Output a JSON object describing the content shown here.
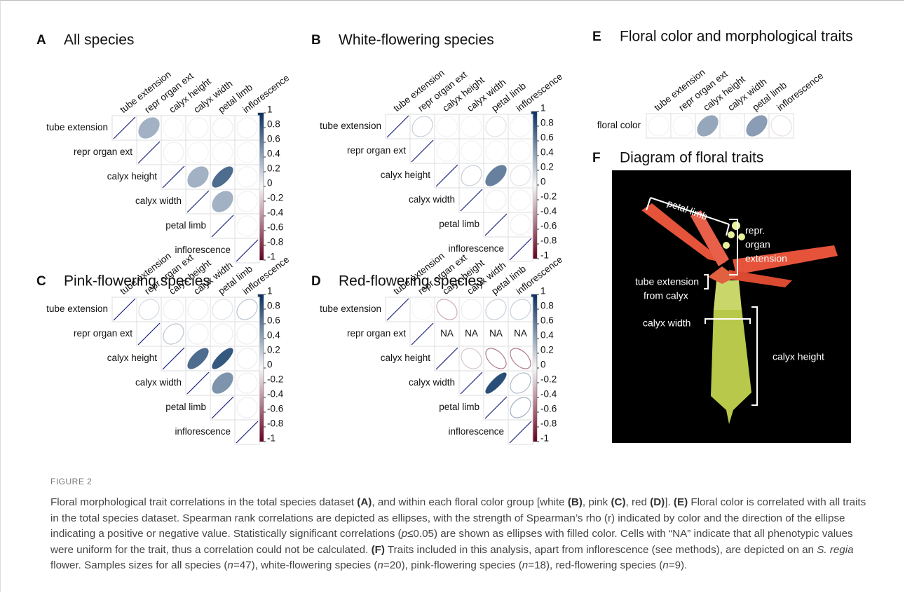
{
  "traits": [
    "tube extension",
    "repr organ ext",
    "calyx height",
    "calyx width",
    "petal limb",
    "inflorescence"
  ],
  "colorbar_ticks": [
    1,
    0.8,
    0.6,
    0.4,
    0.2,
    0,
    -0.2,
    -0.4,
    -0.6,
    -0.8,
    -1
  ],
  "colors": {
    "negative": "#67001f",
    "zero": "#f7f7f7",
    "positive": "#053061",
    "diagonal": "#1a237e"
  },
  "panels": [
    {
      "letter": "A",
      "title": "All species",
      "rows": [
        [
          1,
          0.35,
          0.02,
          0.03,
          0.05,
          0.04
        ],
        [
          1,
          0.05,
          0.02,
          0.02,
          0.02
        ],
        [
          1,
          0.35,
          0.7,
          0.03
        ],
        [
          1,
          0.35,
          0.03
        ],
        [
          1,
          0.02
        ],
        [
          1
        ]
      ],
      "significant": [
        [
          false,
          true,
          false,
          false,
          false,
          false
        ],
        [
          false,
          false,
          false,
          false,
          false
        ],
        [
          false,
          true,
          true,
          false
        ],
        [
          false,
          true,
          false
        ],
        [
          false,
          false
        ],
        [
          false
        ]
      ]
    },
    {
      "letter": "B",
      "title": "White-flowering species",
      "rows": [
        [
          1,
          0.2,
          0.02,
          0.02,
          0.1,
          0.02
        ],
        [
          1,
          0.02,
          0.02,
          0.02,
          0.02
        ],
        [
          1,
          0.2,
          0.6,
          0.1
        ],
        [
          1,
          0.05,
          0.03
        ],
        [
          1,
          0.05
        ],
        [
          1
        ]
      ],
      "significant": [
        [
          false,
          false,
          false,
          false,
          false,
          false
        ],
        [
          false,
          false,
          false,
          false,
          false
        ],
        [
          false,
          false,
          true,
          false
        ],
        [
          false,
          false,
          false
        ],
        [
          false,
          false
        ],
        [
          false
        ]
      ]
    },
    {
      "letter": "C",
      "title": "Pink-flowering species",
      "rows": [
        [
          1,
          0.15,
          0.05,
          0.05,
          0.1,
          0.25
        ],
        [
          1,
          0.25,
          0.05,
          0.05,
          0.05
        ],
        [
          1,
          0.7,
          0.8,
          0.05
        ],
        [
          1,
          0.5,
          0.05
        ],
        [
          1,
          0.05
        ],
        [
          1
        ]
      ],
      "significant": [
        [
          false,
          false,
          false,
          false,
          false,
          false
        ],
        [
          false,
          false,
          false,
          false,
          false
        ],
        [
          false,
          true,
          true,
          false
        ],
        [
          false,
          true,
          false
        ],
        [
          false,
          false
        ],
        [
          false
        ]
      ]
    },
    {
      "letter": "D",
      "title": "Red-flowering species",
      "na_label": "NA",
      "rows": [
        [
          1,
          0.0,
          -0.3,
          0.05,
          0.2,
          0.2
        ],
        [
          1,
          null,
          null,
          null,
          null
        ],
        [
          1,
          -0.2,
          -0.5,
          -0.5
        ],
        [
          1,
          0.85,
          0.3
        ],
        [
          1,
          0.35
        ],
        [
          1
        ]
      ],
      "significant": [
        [
          false,
          false,
          false,
          false,
          false,
          false
        ],
        [
          false,
          false,
          false,
          false,
          false
        ],
        [
          false,
          false,
          false,
          false
        ],
        [
          false,
          true,
          false
        ],
        [
          false,
          false
        ],
        [
          false
        ]
      ]
    }
  ],
  "color_panel": {
    "letter": "E",
    "title": "Floral color and morphological traits",
    "row_label": "floral color",
    "values": [
      0.02,
      0.02,
      0.4,
      0.0,
      0.45,
      -0.1
    ],
    "significant": [
      false,
      false,
      true,
      false,
      true,
      false
    ]
  },
  "diagram": {
    "letter": "F",
    "title": "Diagram of floral traits",
    "labels": [
      [
        "petal limb"
      ],
      [
        "repr.",
        "organ",
        "extension"
      ],
      [
        "tube extension",
        "from calyx"
      ],
      [
        "calyx width"
      ],
      [
        "calyx height"
      ]
    ]
  },
  "figure_label": "FIGURE 2",
  "caption": [
    {
      "text": "Floral morphological trait correlations in the total species dataset "
    },
    {
      "text": "(A)",
      "bold": true
    },
    {
      "text": ", and within each floral color group [white "
    },
    {
      "text": "(B)",
      "bold": true
    },
    {
      "text": ", pink "
    },
    {
      "text": "(C)",
      "bold": true
    },
    {
      "text": ", red "
    },
    {
      "text": "(D)",
      "bold": true
    },
    {
      "text": "]. "
    },
    {
      "text": "(E)",
      "bold": true
    },
    {
      "text": " Floral color is correlated with all traits in the total species dataset. Spearman rank correlations are depicted as ellipses, with the strength of Spearman’s rho (r) indicated by color and the direction of the ellipse indicating a positive or negative value. Statistically significant correlations ("
    },
    {
      "text": "p",
      "italic": true
    },
    {
      "text": "≤0.05) are shown as ellipses with filled color. Cells with “NA” indicate that all phenotypic values were uniform for the trait, thus a correlation could not be calculated. "
    },
    {
      "text": "(F)",
      "bold": true
    },
    {
      "text": " Traits included in this analysis, apart from inflorescence (see methods), are depicted on an "
    },
    {
      "text": "S. regia",
      "italic": true
    },
    {
      "text": " flower. Samples sizes for all species ("
    },
    {
      "text": "n",
      "italic": true
    },
    {
      "text": "=47), white-flowering species ("
    },
    {
      "text": "n",
      "italic": true
    },
    {
      "text": "=20), pink-flowering species ("
    },
    {
      "text": "n",
      "italic": true
    },
    {
      "text": "=18), red-flowering species ("
    },
    {
      "text": "n",
      "italic": true
    },
    {
      "text": "=9)."
    }
  ]
}
